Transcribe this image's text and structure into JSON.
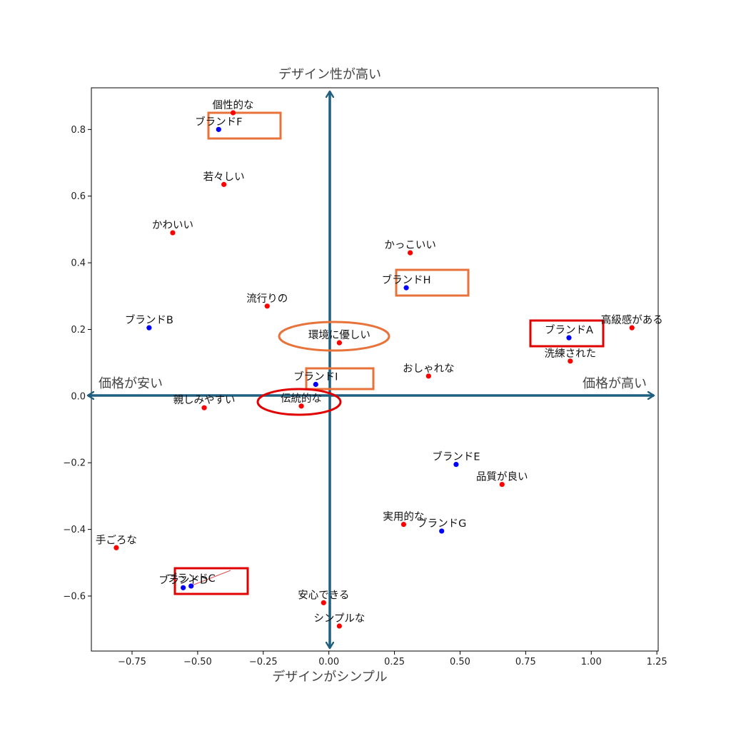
{
  "chart_data": {
    "type": "scatter",
    "title": "",
    "xlabel": "デザインがシンプル",
    "ylabel": "",
    "xlim": [
      -0.905,
      1.255
    ],
    "ylim": [
      -0.765,
      0.925
    ],
    "grid": false,
    "x_ticks": [
      -0.75,
      -0.5,
      -0.25,
      0.0,
      0.25,
      0.5,
      0.75,
      1.0,
      1.25
    ],
    "x_tick_labels": [
      "−0.75",
      "−0.50",
      "−0.25",
      "0.00",
      "0.25",
      "0.50",
      "0.75",
      "1.00",
      "1.25"
    ],
    "y_ticks": [
      -0.6,
      -0.4,
      -0.2,
      0.0,
      0.2,
      0.4,
      0.6,
      0.8
    ],
    "y_tick_labels": [
      "−0.6",
      "−0.4",
      "−0.2",
      "0.0",
      "0.2",
      "0.4",
      "0.6",
      "0.8"
    ],
    "quadrant_labels": {
      "top": "デザイン性が高い",
      "left": "価格が安い",
      "right": "価格が高い"
    },
    "colors": {
      "brand_point": "#0000ff",
      "attribute_point": "#ff0000",
      "axis_arrow": "#1f5f80",
      "highlight_red": "#e00000",
      "highlight_orange": "#e8733a"
    },
    "series": [
      {
        "kind": "brand",
        "points": [
          {
            "label": "ブランドA",
            "x": 0.915,
            "y": 0.175
          },
          {
            "label": "ブランドB",
            "x": -0.685,
            "y": 0.205
          },
          {
            "label": "ブランドC",
            "x": -0.525,
            "y": -0.57
          },
          {
            "label": "ブランドD",
            "x": -0.555,
            "y": -0.575
          },
          {
            "label": "ブランドE",
            "x": 0.485,
            "y": -0.205
          },
          {
            "label": "ブランドF",
            "x": -0.42,
            "y": 0.8
          },
          {
            "label": "ブランドG",
            "x": 0.43,
            "y": -0.405
          },
          {
            "label": "ブランドH",
            "x": 0.295,
            "y": 0.325
          },
          {
            "label": "ブランドI",
            "x": -0.05,
            "y": 0.035
          }
        ]
      },
      {
        "kind": "attribute",
        "points": [
          {
            "label": "高級感がある",
            "x": 1.155,
            "y": 0.205
          },
          {
            "label": "洗練された",
            "x": 0.92,
            "y": 0.105
          },
          {
            "label": "個性的な",
            "x": -0.365,
            "y": 0.85
          },
          {
            "label": "若々しい",
            "x": -0.4,
            "y": 0.635
          },
          {
            "label": "かわいい",
            "x": -0.595,
            "y": 0.49
          },
          {
            "label": "かっこいい",
            "x": 0.31,
            "y": 0.43
          },
          {
            "label": "流行りの",
            "x": -0.235,
            "y": 0.27
          },
          {
            "label": "環境に優しい",
            "x": 0.04,
            "y": 0.16
          },
          {
            "label": "おしゃれな",
            "x": 0.38,
            "y": 0.06
          },
          {
            "label": "親しみやすい",
            "x": -0.475,
            "y": -0.035
          },
          {
            "label": "伝統的な",
            "x": -0.105,
            "y": -0.03
          },
          {
            "label": "品質が良い",
            "x": 0.66,
            "y": -0.265
          },
          {
            "label": "実用的な",
            "x": 0.285,
            "y": -0.385
          },
          {
            "label": "手ごろな",
            "x": -0.81,
            "y": -0.455
          },
          {
            "label": "安心できる",
            "x": -0.02,
            "y": -0.62
          },
          {
            "label": "シンプルな",
            "x": 0.04,
            "y": -0.69
          }
        ]
      }
    ]
  }
}
